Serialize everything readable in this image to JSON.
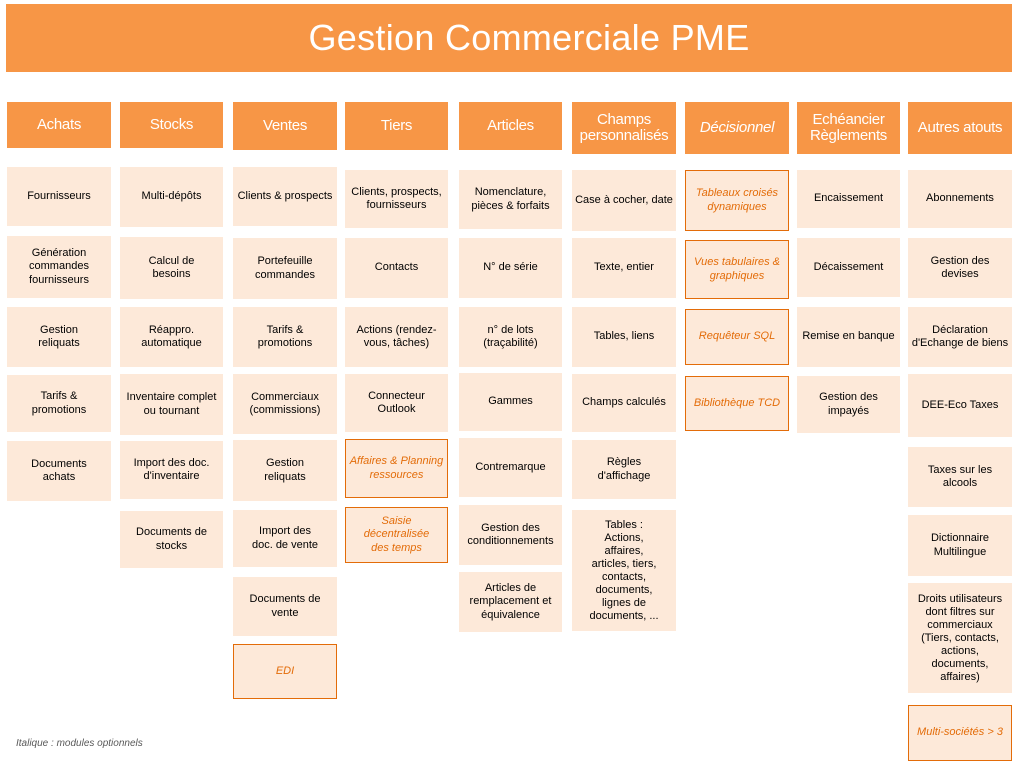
{
  "title": "Gestion Commerciale PME",
  "footnote": "Italique : modules optionnels",
  "columns": [
    {
      "id": "achats",
      "header": "Achats",
      "items": [
        "Fournisseurs",
        "Génération\ncommandes\nfournisseurs",
        "Gestion\nreliquats",
        "Tarifs &\npromotions",
        "Documents\nachats"
      ]
    },
    {
      "id": "stocks",
      "header": "Stocks",
      "items": [
        "Multi-dépôts",
        "Calcul de\nbesoins",
        "Réappro.\nautomatique",
        "Inventaire complet\nou tournant",
        "Import des doc.\nd'inventaire",
        "Documents de\nstocks"
      ]
    },
    {
      "id": "ventes",
      "header": "Ventes",
      "items": [
        "Clients & prospects",
        "Portefeuille\ncommandes",
        "Tarifs &\npromotions",
        "Commerciaux\n(commissions)",
        "Gestion\nreliquats",
        "Import des\ndoc. de vente",
        "Documents de\nvente",
        "EDI"
      ]
    },
    {
      "id": "tiers",
      "header": "Tiers",
      "items": [
        "Clients, prospects,\nfournisseurs",
        "Contacts",
        "Actions (rendez-\nvous, tâches)",
        "Connecteur\nOutlook",
        "Affaires & Planning\nressources",
        "Saisie\ndécentralisée\ndes temps"
      ]
    },
    {
      "id": "articles",
      "header": "Articles",
      "items": [
        "Nomenclature,\npièces & forfaits",
        "N° de série",
        "n° de lots\n(traçabilité)",
        "Gammes",
        "Contremarque",
        "Gestion des\nconditionnements",
        "Articles de\nremplacement et\néquivalence"
      ]
    },
    {
      "id": "champs",
      "header": "Champs\npersonnalisés",
      "items": [
        "Case à cocher, date",
        "Texte, entier",
        "Tables, liens",
        "Champs calculés",
        "Règles\nd'affichage",
        "Tables :\nActions,\naffaires,\narticles, tiers,\ncontacts,\ndocuments,\nlignes de\ndocuments, ..."
      ]
    },
    {
      "id": "decisionnel",
      "header": "Décisionnel",
      "items": [
        "Tableaux croisés\ndynamiques",
        "Vues tabulaires &\ngraphiques",
        "Requêteur SQL",
        "Bibliothèque TCD"
      ]
    },
    {
      "id": "echeancier",
      "header": "Echéancier\nRèglements",
      "items": [
        "Encaissement",
        "Décaissement",
        "Remise en banque",
        "Gestion des\nimpayés"
      ]
    },
    {
      "id": "atouts",
      "header": "Autres atouts",
      "items": [
        "Abonnements",
        "Gestion des\ndevises",
        "Déclaration\nd'Echange de biens",
        "DEE-Eco Taxes",
        "Taxes sur les\nalcools",
        "Dictionnaire\nMultilingue",
        "Droits utilisateurs\ndont filtres sur\ncommerciaux\n(Tiers, contacts,\nactions,\ndocuments,\naffaires)",
        "Multi-sociétés > 3"
      ]
    }
  ]
}
